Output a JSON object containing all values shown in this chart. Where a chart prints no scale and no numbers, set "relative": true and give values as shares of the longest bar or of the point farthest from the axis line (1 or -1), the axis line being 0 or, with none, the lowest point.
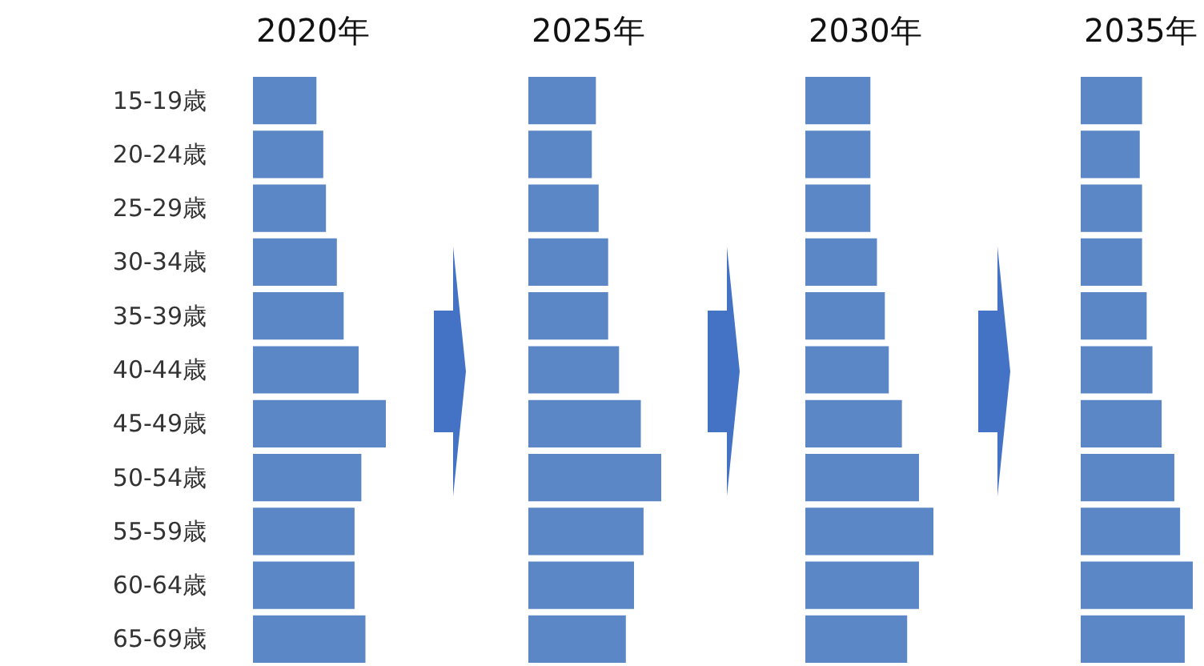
{
  "chart_data": [
    {
      "type": "bar",
      "orientation": "horizontal",
      "relative": true,
      "title": "2020年",
      "tick_labels": "y",
      "categories": [
        "15-19歳",
        "20-24歳",
        "25-29歳",
        "30-34歳",
        "35-39歳",
        "40-44歳",
        "45-49歳",
        "50-54歳",
        "55-59歳",
        "60-64歳",
        "65-69歳"
      ],
      "color": "#5b87c6",
      "values": [
        0.49,
        0.54,
        0.56,
        0.64,
        0.69,
        0.8,
        1,
        0.82,
        0.77,
        0.77,
        0.85
      ]
    },
    {
      "type": "bar",
      "orientation": "horizontal",
      "relative": true,
      "title": "2025年",
      "categories": [
        null,
        null,
        null,
        null,
        null,
        null,
        null,
        null,
        null,
        null,
        null
      ],
      "color": "#5b87c6",
      "values": [
        0.52,
        0.49,
        0.54,
        0.61,
        0.61,
        0.69,
        0.85,
        1,
        0.87,
        0.8,
        0.74
      ]
    },
    {
      "type": "bar",
      "orientation": "horizontal",
      "relative": true,
      "title": "2030年",
      "categories": [
        null,
        null,
        null,
        null,
        null,
        null,
        null,
        null,
        null,
        null,
        null
      ],
      "color": "#5b87c6",
      "values": [
        0.52,
        0.52,
        0.52,
        0.57,
        0.63,
        0.66,
        0.76,
        0.89,
        1,
        0.89,
        0.8
      ]
    },
    {
      "type": "bar",
      "orientation": "horizontal",
      "relative": true,
      "title": "2035年",
      "categories": [
        null,
        null,
        null,
        null,
        null,
        null,
        null,
        null,
        null,
        null,
        null
      ],
      "color": "#5b87c6",
      "values": [
        0.56,
        0.54,
        0.56,
        0.56,
        0.6,
        0.65,
        0.73,
        0.84,
        0.89,
        1,
        0.93
      ]
    }
  ]
}
